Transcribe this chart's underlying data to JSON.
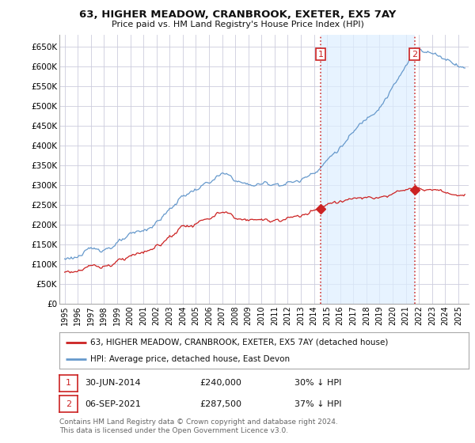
{
  "title": "63, HIGHER MEADOW, CRANBROOK, EXETER, EX5 7AY",
  "subtitle": "Price paid vs. HM Land Registry's House Price Index (HPI)",
  "ylim": [
    0,
    680000
  ],
  "yticks": [
    0,
    50000,
    100000,
    150000,
    200000,
    250000,
    300000,
    350000,
    400000,
    450000,
    500000,
    550000,
    600000,
    650000
  ],
  "ytick_labels": [
    "£0",
    "£50K",
    "£100K",
    "£150K",
    "£200K",
    "£250K",
    "£300K",
    "£350K",
    "£400K",
    "£450K",
    "£500K",
    "£550K",
    "£600K",
    "£650K"
  ],
  "hpi_color": "#6699cc",
  "hpi_fill_color": "#ddeeff",
  "price_color": "#cc2222",
  "vline_color": "#cc2222",
  "legend_label1": "63, HIGHER MEADOW, CRANBROOK, EXETER, EX5 7AY (detached house)",
  "legend_label2": "HPI: Average price, detached house, East Devon",
  "sale1_date": "30-JUN-2014",
  "sale1_price": "£240,000",
  "sale1_pct": "30% ↓ HPI",
  "sale2_date": "06-SEP-2021",
  "sale2_price": "£287,500",
  "sale2_pct": "37% ↓ HPI",
  "sale1_year": 2014.5,
  "sale2_year": 2021.67,
  "sale1_value": 240000,
  "sale2_value": 287500,
  "footnote1": "Contains HM Land Registry data © Crown copyright and database right 2024.",
  "footnote2": "This data is licensed under the Open Government Licence v3.0.",
  "background_color": "#ffffff",
  "plot_bg_color": "#ffffff",
  "grid_color": "#ccccdd"
}
